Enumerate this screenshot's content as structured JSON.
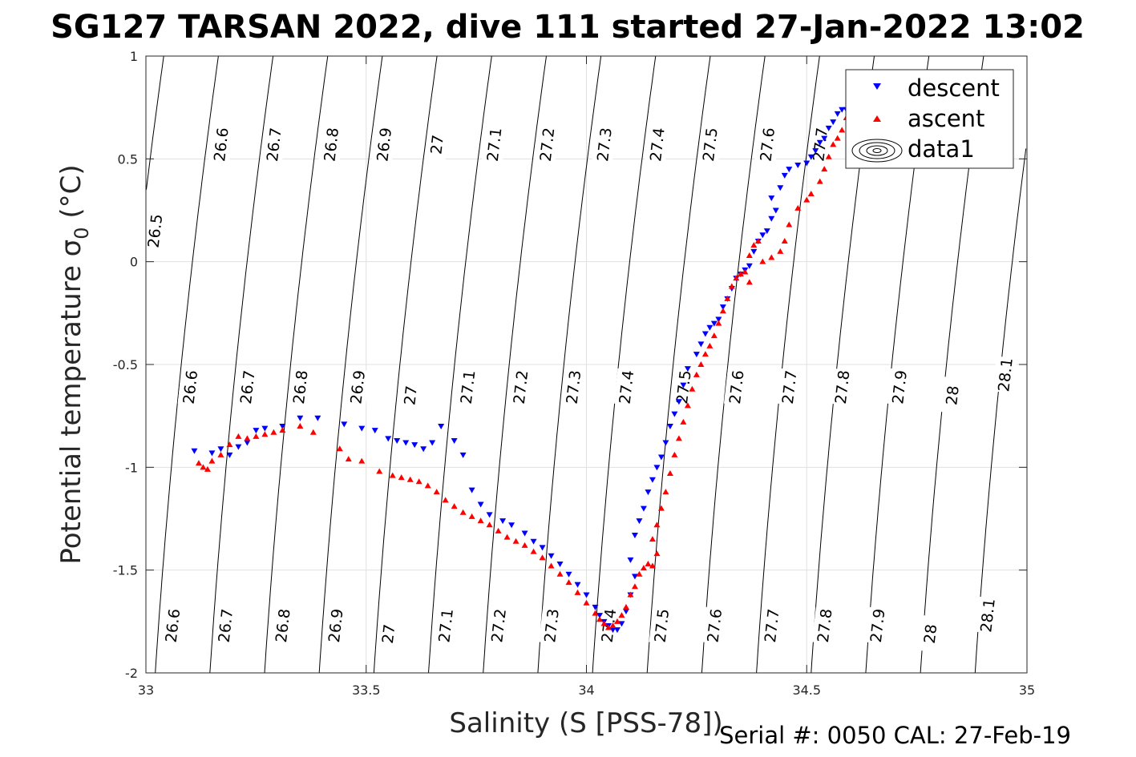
{
  "chart_data": {
    "type": "scatter",
    "title": "SG127 TARSAN 2022, dive 111 started 27-Jan-2022 13:02",
    "xlabel": "Salinity (S [PSS-78])",
    "ylabel_main": "Potential temperature ",
    "ylabel_sym": "σ",
    "ylabel_sub": "0",
    "ylabel_unit": " (°C)",
    "xlim": [
      33,
      35
    ],
    "ylim": [
      -2,
      1
    ],
    "grid": true,
    "x_ticks": [
      "33",
      "33.5",
      "34",
      "34.5",
      "35"
    ],
    "y_ticks": [
      "-2",
      "-1.5",
      "-1",
      "-0.5",
      "0",
      "0.5",
      "1"
    ],
    "serial_note": "Serial #: 0050  CAL: 27-Feb-19",
    "legend": {
      "position": "top-right",
      "entries": [
        "descent",
        "ascent",
        "data1"
      ]
    },
    "density_contours": {
      "levels": [
        "26.5",
        "26.6",
        "26.7",
        "26.8",
        "26.9",
        "27",
        "27.1",
        "27.2",
        "27.3",
        "27.4",
        "27.5",
        "27.6",
        "27.7",
        "27.8",
        "27.9",
        "28",
        "28.1"
      ],
      "labels_top": [
        {
          "level": "26.5",
          "s": 33.02,
          "t": 0.15
        },
        {
          "level": "26.6",
          "s": 33.17,
          "t": 0.57
        },
        {
          "level": "26.7",
          "s": 33.29,
          "t": 0.57
        },
        {
          "level": "26.8",
          "s": 33.42,
          "t": 0.57
        },
        {
          "level": "26.9",
          "s": 33.54,
          "t": 0.57
        },
        {
          "level": "27",
          "s": 33.66,
          "t": 0.57
        },
        {
          "level": "27.1",
          "s": 33.79,
          "t": 0.57
        },
        {
          "level": "27.2",
          "s": 33.91,
          "t": 0.57
        },
        {
          "level": "27.3",
          "s": 34.04,
          "t": 0.57
        },
        {
          "level": "27.4",
          "s": 34.16,
          "t": 0.57
        },
        {
          "level": "27.5",
          "s": 34.28,
          "t": 0.57
        },
        {
          "level": "27.6",
          "s": 34.41,
          "t": 0.57
        },
        {
          "level": "27.7",
          "s": 34.53,
          "t": 0.57
        }
      ],
      "labels_mid": [
        {
          "level": "26.6",
          "s": 33.1,
          "t": -0.61
        },
        {
          "level": "26.7",
          "s": 33.23,
          "t": -0.61
        },
        {
          "level": "26.8",
          "s": 33.35,
          "t": -0.61
        },
        {
          "level": "26.9",
          "s": 33.48,
          "t": -0.61
        },
        {
          "level": "27",
          "s": 33.6,
          "t": -0.65
        },
        {
          "level": "27.1",
          "s": 33.73,
          "t": -0.61
        },
        {
          "level": "27.2",
          "s": 33.85,
          "t": -0.61
        },
        {
          "level": "27.3",
          "s": 33.97,
          "t": -0.61
        },
        {
          "level": "27.4",
          "s": 34.09,
          "t": -0.61
        },
        {
          "level": "27.5",
          "s": 34.22,
          "t": -0.61
        },
        {
          "level": "27.6",
          "s": 34.34,
          "t": -0.61
        },
        {
          "level": "27.7",
          "s": 34.46,
          "t": -0.61
        },
        {
          "level": "27.8",
          "s": 34.58,
          "t": -0.61
        },
        {
          "level": "27.9",
          "s": 34.71,
          "t": -0.61
        },
        {
          "level": "28",
          "s": 34.83,
          "t": -0.65
        },
        {
          "level": "28.1",
          "s": 34.95,
          "t": -0.55
        }
      ],
      "labels_bottom": [
        {
          "level": "26.6",
          "s": 33.06,
          "t": -1.77
        },
        {
          "level": "26.7",
          "s": 33.18,
          "t": -1.77
        },
        {
          "level": "26.8",
          "s": 33.31,
          "t": -1.77
        },
        {
          "level": "26.9",
          "s": 33.43,
          "t": -1.77
        },
        {
          "level": "27",
          "s": 33.55,
          "t": -1.81
        },
        {
          "level": "27.1",
          "s": 33.68,
          "t": -1.77
        },
        {
          "level": "27.2",
          "s": 33.8,
          "t": -1.77
        },
        {
          "level": "27.3",
          "s": 33.92,
          "t": -1.77
        },
        {
          "level": "27.4",
          "s": 34.05,
          "t": -1.77
        },
        {
          "level": "27.5",
          "s": 34.17,
          "t": -1.77
        },
        {
          "level": "27.6",
          "s": 34.29,
          "t": -1.77
        },
        {
          "level": "27.7",
          "s": 34.42,
          "t": -1.77
        },
        {
          "level": "27.8",
          "s": 34.54,
          "t": -1.77
        },
        {
          "level": "27.9",
          "s": 34.66,
          "t": -1.77
        },
        {
          "level": "28",
          "s": 34.78,
          "t": -1.81
        },
        {
          "level": "28.1",
          "s": 34.91,
          "t": -1.72
        }
      ]
    },
    "series": [
      {
        "name": "descent",
        "marker": "triangle-down",
        "color": "#0000ff",
        "points": [
          [
            33.11,
            -0.92
          ],
          [
            33.15,
            -0.93
          ],
          [
            33.17,
            -0.91
          ],
          [
            33.19,
            -0.94
          ],
          [
            33.21,
            -0.9
          ],
          [
            33.23,
            -0.88
          ],
          [
            33.25,
            -0.82
          ],
          [
            33.27,
            -0.81
          ],
          [
            33.31,
            -0.8
          ],
          [
            33.35,
            -0.76
          ],
          [
            33.39,
            -0.76
          ],
          [
            33.45,
            -0.79
          ],
          [
            33.49,
            -0.81
          ],
          [
            33.52,
            -0.82
          ],
          [
            33.55,
            -0.86
          ],
          [
            33.57,
            -0.87
          ],
          [
            33.59,
            -0.88
          ],
          [
            33.61,
            -0.89
          ],
          [
            33.63,
            -0.91
          ],
          [
            33.65,
            -0.88
          ],
          [
            33.67,
            -0.8
          ],
          [
            33.7,
            -0.87
          ],
          [
            33.72,
            -0.94
          ],
          [
            33.74,
            -1.11
          ],
          [
            33.76,
            -1.18
          ],
          [
            33.78,
            -1.23
          ],
          [
            33.81,
            -1.26
          ],
          [
            33.83,
            -1.28
          ],
          [
            33.86,
            -1.32
          ],
          [
            33.88,
            -1.36
          ],
          [
            33.9,
            -1.39
          ],
          [
            33.92,
            -1.43
          ],
          [
            33.94,
            -1.47
          ],
          [
            33.96,
            -1.52
          ],
          [
            33.98,
            -1.57
          ],
          [
            34.0,
            -1.62
          ],
          [
            34.02,
            -1.68
          ],
          [
            34.03,
            -1.72
          ],
          [
            34.04,
            -1.75
          ],
          [
            34.05,
            -1.77
          ],
          [
            34.06,
            -1.79
          ],
          [
            34.07,
            -1.79
          ],
          [
            34.08,
            -1.76
          ],
          [
            34.09,
            -1.7
          ],
          [
            34.1,
            -1.62
          ],
          [
            34.11,
            -1.53
          ],
          [
            34.1,
            -1.45
          ],
          [
            34.11,
            -1.33
          ],
          [
            34.12,
            -1.26
          ],
          [
            34.13,
            -1.2
          ],
          [
            34.14,
            -1.12
          ],
          [
            34.15,
            -1.06
          ],
          [
            34.16,
            -1.0
          ],
          [
            34.17,
            -0.95
          ],
          [
            34.18,
            -0.88
          ],
          [
            34.19,
            -0.8
          ],
          [
            34.2,
            -0.74
          ],
          [
            34.21,
            -0.68
          ],
          [
            34.22,
            -0.6
          ],
          [
            34.23,
            -0.52
          ],
          [
            34.25,
            -0.45
          ],
          [
            34.26,
            -0.4
          ],
          [
            34.27,
            -0.35
          ],
          [
            34.28,
            -0.32
          ],
          [
            34.29,
            -0.3
          ],
          [
            34.3,
            -0.28
          ],
          [
            34.31,
            -0.22
          ],
          [
            34.32,
            -0.18
          ],
          [
            34.33,
            -0.13
          ],
          [
            34.34,
            -0.08
          ],
          [
            34.35,
            -0.06
          ],
          [
            34.36,
            -0.04
          ],
          [
            34.37,
            -0.02
          ],
          [
            34.38,
            0.05
          ],
          [
            34.39,
            0.1
          ],
          [
            34.4,
            0.13
          ],
          [
            34.41,
            0.15
          ],
          [
            34.42,
            0.21
          ],
          [
            34.43,
            0.25
          ],
          [
            34.42,
            0.31
          ],
          [
            34.44,
            0.36
          ],
          [
            34.45,
            0.42
          ],
          [
            34.46,
            0.45
          ],
          [
            34.48,
            0.47
          ],
          [
            34.5,
            0.48
          ],
          [
            34.51,
            0.51
          ],
          [
            34.52,
            0.54
          ],
          [
            34.53,
            0.58
          ],
          [
            34.54,
            0.6
          ],
          [
            34.55,
            0.65
          ],
          [
            34.56,
            0.68
          ],
          [
            34.57,
            0.72
          ],
          [
            34.58,
            0.74
          ],
          [
            34.59,
            0.74
          ]
        ]
      },
      {
        "name": "ascent",
        "marker": "triangle-up",
        "color": "#ff0000",
        "points": [
          [
            33.12,
            -0.98
          ],
          [
            33.13,
            -1.0
          ],
          [
            33.14,
            -1.01
          ],
          [
            33.15,
            -0.97
          ],
          [
            33.17,
            -0.94
          ],
          [
            33.19,
            -0.89
          ],
          [
            33.21,
            -0.85
          ],
          [
            33.23,
            -0.86
          ],
          [
            33.25,
            -0.85
          ],
          [
            33.27,
            -0.84
          ],
          [
            33.29,
            -0.83
          ],
          [
            33.31,
            -0.82
          ],
          [
            33.35,
            -0.8
          ],
          [
            33.38,
            -0.83
          ],
          [
            33.44,
            -0.91
          ],
          [
            33.46,
            -0.96
          ],
          [
            33.49,
            -0.97
          ],
          [
            33.53,
            -1.02
          ],
          [
            33.56,
            -1.04
          ],
          [
            33.58,
            -1.05
          ],
          [
            33.6,
            -1.06
          ],
          [
            33.62,
            -1.07
          ],
          [
            33.64,
            -1.09
          ],
          [
            33.66,
            -1.12
          ],
          [
            33.68,
            -1.16
          ],
          [
            33.7,
            -1.19
          ],
          [
            33.72,
            -1.22
          ],
          [
            33.74,
            -1.24
          ],
          [
            33.76,
            -1.26
          ],
          [
            33.78,
            -1.28
          ],
          [
            33.8,
            -1.31
          ],
          [
            33.82,
            -1.34
          ],
          [
            33.84,
            -1.36
          ],
          [
            33.86,
            -1.38
          ],
          [
            33.88,
            -1.41
          ],
          [
            33.9,
            -1.44
          ],
          [
            33.92,
            -1.48
          ],
          [
            33.94,
            -1.52
          ],
          [
            33.96,
            -1.56
          ],
          [
            33.98,
            -1.61
          ],
          [
            34.0,
            -1.66
          ],
          [
            34.02,
            -1.71
          ],
          [
            34.03,
            -1.74
          ],
          [
            34.04,
            -1.76
          ],
          [
            34.05,
            -1.78
          ],
          [
            34.06,
            -1.77
          ],
          [
            34.07,
            -1.75
          ],
          [
            34.08,
            -1.72
          ],
          [
            34.09,
            -1.68
          ],
          [
            34.1,
            -1.62
          ],
          [
            34.11,
            -1.58
          ],
          [
            34.12,
            -1.52
          ],
          [
            34.13,
            -1.49
          ],
          [
            34.14,
            -1.47
          ],
          [
            34.15,
            -1.48
          ],
          [
            34.16,
            -1.42
          ],
          [
            34.15,
            -1.35
          ],
          [
            34.16,
            -1.28
          ],
          [
            34.17,
            -1.2
          ],
          [
            34.18,
            -1.12
          ],
          [
            34.19,
            -1.03
          ],
          [
            34.2,
            -0.94
          ],
          [
            34.21,
            -0.86
          ],
          [
            34.22,
            -0.78
          ],
          [
            34.23,
            -0.7
          ],
          [
            34.24,
            -0.62
          ],
          [
            34.25,
            -0.55
          ],
          [
            34.26,
            -0.5
          ],
          [
            34.27,
            -0.45
          ],
          [
            34.28,
            -0.41
          ],
          [
            34.29,
            -0.36
          ],
          [
            34.3,
            -0.3
          ],
          [
            34.31,
            -0.24
          ],
          [
            34.32,
            -0.18
          ],
          [
            34.33,
            -0.12
          ],
          [
            34.34,
            -0.08
          ],
          [
            34.35,
            -0.06
          ],
          [
            34.36,
            -0.05
          ],
          [
            34.37,
            -0.1
          ],
          [
            34.37,
            0.03
          ],
          [
            34.38,
            0.08
          ],
          [
            34.39,
            0.1
          ],
          [
            34.4,
            0.0
          ],
          [
            34.42,
            0.02
          ],
          [
            34.44,
            0.05
          ],
          [
            34.45,
            0.1
          ],
          [
            34.46,
            0.18
          ],
          [
            34.48,
            0.26
          ],
          [
            34.5,
            0.3
          ],
          [
            34.51,
            0.33
          ],
          [
            34.53,
            0.39
          ],
          [
            34.54,
            0.45
          ],
          [
            34.55,
            0.51
          ],
          [
            34.56,
            0.57
          ],
          [
            34.57,
            0.6
          ],
          [
            34.58,
            0.64
          ],
          [
            34.59,
            0.7
          ],
          [
            34.6,
            0.71
          ]
        ]
      }
    ]
  }
}
